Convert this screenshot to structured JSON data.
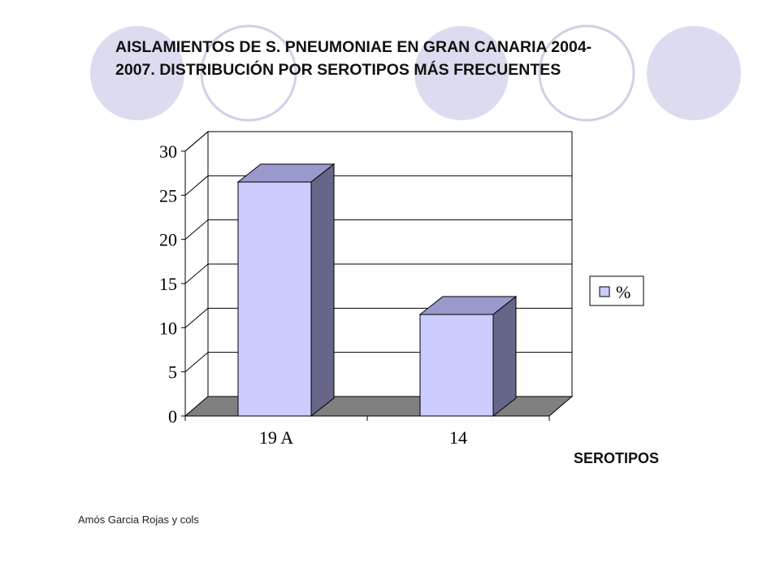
{
  "title": {
    "line1": "AISLAMIENTOS DE S. PNEUMONIAE EN GRAN CANARIA 2004-",
    "line2": "2007. DISTRIBUCIÓN POR SEROTIPOS MÁS FRECUENTES"
  },
  "credit": "Amós Garcia Rojas y cols",
  "colors": {
    "bar_front": "#ccccff",
    "bar_side": "#666688",
    "bar_top": "#9999cc",
    "floor": "#808080",
    "deco_circle_fill": "#dcdcf0",
    "deco_circle_stroke": "#d0d0e8"
  },
  "chart_data": {
    "type": "bar",
    "categories": [
      "19 A",
      "14"
    ],
    "series": [
      {
        "name": "%",
        "values": [
          26.5,
          11.5
        ]
      }
    ],
    "xlabel": "SEROTIPOS",
    "ylabel": "",
    "ylim": [
      0,
      30
    ],
    "yticks": [
      "0",
      "5",
      "10",
      "15",
      "20",
      "25",
      "30"
    ],
    "grid": true,
    "legend": "right",
    "style": "3d"
  }
}
